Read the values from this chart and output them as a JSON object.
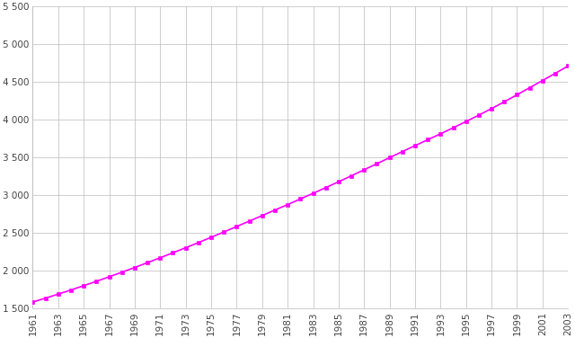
{
  "years": [
    1961,
    1962,
    1963,
    1964,
    1965,
    1966,
    1967,
    1968,
    1969,
    1970,
    1971,
    1972,
    1973,
    1974,
    1975,
    1976,
    1977,
    1978,
    1979,
    1980,
    1981,
    1982,
    1983,
    1984,
    1985,
    1986,
    1987,
    1988,
    1989,
    1990,
    1991,
    1992,
    1993,
    1994,
    1995,
    1996,
    1997,
    1998,
    1999,
    2000,
    2001,
    2002,
    2003
  ],
  "population": [
    1578,
    1630,
    1683,
    1738,
    1795,
    1853,
    1913,
    1974,
    2036,
    2100,
    2165,
    2231,
    2298,
    2366,
    2436,
    2507,
    2579,
    2651,
    2724,
    2797,
    2870,
    2944,
    3019,
    3095,
    3172,
    3251,
    3331,
    3411,
    3492,
    3572,
    3651,
    3729,
    3808,
    3888,
    3971,
    4055,
    4142,
    4232,
    4325,
    4419,
    4514,
    4609,
    4706
  ],
  "line_color": "#FF00FF",
  "marker_color": "#FF00FF",
  "marker": "s",
  "marker_size": 3.5,
  "line_width": 1.2,
  "ylim": [
    1500,
    5500
  ],
  "yticks": [
    1500,
    2000,
    2500,
    3000,
    3500,
    4000,
    4500,
    5000,
    5500
  ],
  "ytick_labels": [
    "1 500",
    "2 000",
    "2 500",
    "3 000",
    "3 500",
    "4 000",
    "4 500",
    "5 000",
    "5 500"
  ],
  "background_color": "#FFFFFF",
  "grid_color": "#BBBBBB",
  "tick_fontsize": 7.5
}
